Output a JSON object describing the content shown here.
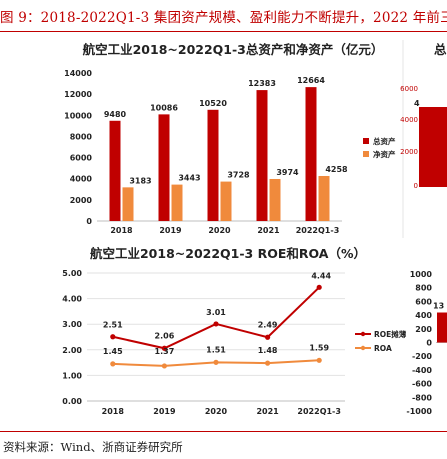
{
  "figure": {
    "title": "图 9：2018-2022Q1-3 集团资产规模、盈利能力不断提升，2022 年前三",
    "source": "资料来源：Wind、浙商证券研究所"
  },
  "chart_data": [
    {
      "type": "bar",
      "title": "航空工业2018~2022Q1-3总资产和净资产（亿元）",
      "categories": [
        "2018",
        "2019",
        "2020",
        "2021",
        "2022Q1-3"
      ],
      "series": [
        {
          "name": "总资产",
          "values": [
            9480,
            10086,
            10520,
            12383,
            12664
          ],
          "color": "#c00000"
        },
        {
          "name": "净资产",
          "values": [
            3183,
            3443,
            3728,
            3974,
            4258
          ],
          "color": "#f08a3c"
        }
      ],
      "ylim": [
        0,
        14000
      ],
      "yticks": [
        "0",
        "2000",
        "4000",
        "6000",
        "8000",
        "10000",
        "12000",
        "14000"
      ],
      "legend": "right",
      "grid": false
    },
    {
      "type": "line",
      "title": "航空工业2018~2022Q1-3 ROE和ROA（%）",
      "categories": [
        "2018",
        "2019",
        "2020",
        "2021",
        "2022Q1-3"
      ],
      "series": [
        {
          "name": "ROE摊薄",
          "values": [
            2.51,
            2.06,
            3.01,
            2.49,
            4.44
          ],
          "labels": [
            "2.51",
            "2.06",
            "3.01",
            "2.49",
            "4.44"
          ],
          "color": "#c00000"
        },
        {
          "name": "ROA",
          "values": [
            1.45,
            1.37,
            1.51,
            1.48,
            1.59
          ],
          "labels": [
            "1.45",
            "1.37",
            "1.51",
            "1.48",
            "1.59"
          ],
          "color": "#f08a3c"
        }
      ],
      "ylim": [
        0,
        5
      ],
      "yticks": [
        "0.00",
        "1.00",
        "2.00",
        "3.00",
        "4.00",
        "5.00"
      ],
      "legend": "right",
      "grid": true
    },
    {
      "type": "bar",
      "partial": true,
      "title_visible": "总",
      "yticks": [
        "1000",
        "800",
        "600",
        "400",
        "200",
        "0",
        "-200",
        "-400",
        "-600",
        "-800",
        "-1000"
      ],
      "tick_top": [
        "6000",
        "4000",
        "2000",
        "0"
      ],
      "labels_visible": [
        "4",
        "13"
      ]
    }
  ]
}
